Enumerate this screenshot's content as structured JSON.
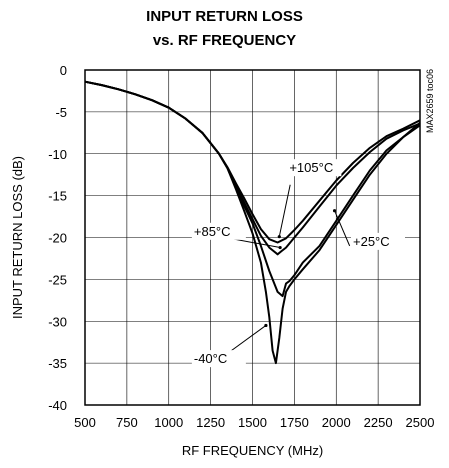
{
  "chart_data": {
    "type": "line",
    "title": [
      "INPUT RETURN LOSS",
      "vs. RF FREQUENCY"
    ],
    "xlabel": "RF FREQUENCY (MHz)",
    "ylabel": "INPUT RETURN LOSS (dB)",
    "xlim": [
      500,
      2500
    ],
    "ylim": [
      -40,
      0
    ],
    "xticks": [
      500,
      750,
      1000,
      1250,
      1500,
      1750,
      2000,
      2250,
      2500
    ],
    "yticks": [
      0,
      -5,
      -10,
      -15,
      -20,
      -25,
      -30,
      -35,
      -40
    ],
    "grid": true,
    "watermark": "MAX2659 toc06",
    "series": [
      {
        "name": "-40°C",
        "x": [
          500,
          600,
          700,
          800,
          900,
          1000,
          1100,
          1200,
          1300,
          1350,
          1400,
          1450,
          1500,
          1550,
          1580,
          1600,
          1620,
          1640,
          1660,
          1680,
          1700,
          1720,
          1750,
          1800,
          1900,
          2000,
          2100,
          2200,
          2300,
          2400,
          2500
        ],
        "y": [
          -1.4,
          -1.8,
          -2.3,
          -2.9,
          -3.6,
          -4.5,
          -5.8,
          -7.5,
          -10.0,
          -11.7,
          -14.2,
          -16.8,
          -19.5,
          -23.0,
          -26.5,
          -29.5,
          -33.5,
          -35.0,
          -32.0,
          -28.5,
          -26.5,
          -25.8,
          -25.0,
          -23.8,
          -21.5,
          -18.5,
          -15.5,
          -12.5,
          -10.0,
          -8.0,
          -6.3
        ]
      },
      {
        "name": "+25°C",
        "x": [
          500,
          600,
          700,
          800,
          900,
          1000,
          1100,
          1200,
          1300,
          1350,
          1400,
          1450,
          1500,
          1550,
          1600,
          1650,
          1680,
          1700,
          1720,
          1750,
          1800,
          1900,
          2000,
          2100,
          2200,
          2300,
          2400,
          2500
        ],
        "y": [
          -1.4,
          -1.8,
          -2.3,
          -2.9,
          -3.6,
          -4.5,
          -5.8,
          -7.5,
          -10.0,
          -11.7,
          -14.0,
          -16.2,
          -18.3,
          -21.0,
          -24.0,
          -26.5,
          -27.0,
          -25.5,
          -25.2,
          -24.5,
          -23.0,
          -21.0,
          -18.0,
          -15.0,
          -12.0,
          -9.6,
          -8.0,
          -6.6
        ]
      },
      {
        "name": "+85°C",
        "x": [
          500,
          600,
          700,
          800,
          900,
          1000,
          1100,
          1200,
          1300,
          1350,
          1400,
          1450,
          1500,
          1550,
          1600,
          1650,
          1675,
          1700,
          1750,
          1800,
          1900,
          2000,
          2100,
          2200,
          2300,
          2400,
          2500
        ],
        "y": [
          -1.4,
          -1.8,
          -2.3,
          -2.9,
          -3.6,
          -4.5,
          -5.8,
          -7.5,
          -10.0,
          -11.7,
          -13.8,
          -15.8,
          -17.8,
          -19.8,
          -21.2,
          -22.0,
          -21.6,
          -21.2,
          -20.0,
          -18.8,
          -16.3,
          -13.8,
          -11.7,
          -9.8,
          -8.2,
          -7.2,
          -6.4
        ]
      },
      {
        "name": "+105°C",
        "x": [
          500,
          600,
          700,
          800,
          900,
          1000,
          1100,
          1200,
          1300,
          1350,
          1400,
          1450,
          1500,
          1550,
          1600,
          1650,
          1700,
          1750,
          1800,
          1900,
          2000,
          2100,
          2200,
          2300,
          2400,
          2500
        ],
        "y": [
          -1.4,
          -1.8,
          -2.3,
          -2.9,
          -3.6,
          -4.5,
          -5.8,
          -7.5,
          -10.0,
          -11.6,
          -13.5,
          -15.3,
          -17.2,
          -19.0,
          -20.2,
          -20.6,
          -20.1,
          -19.1,
          -18.0,
          -15.6,
          -13.2,
          -11.1,
          -9.3,
          -7.9,
          -7.0,
          -6.0
        ]
      }
    ],
    "annotations": [
      {
        "text": "+105°C",
        "x": 1720,
        "y": -12.2
      },
      {
        "text": "+85°C",
        "x": 1150,
        "y": -19.8
      },
      {
        "text": "+25°C",
        "x": 2100,
        "y": -21.0
      },
      {
        "text": "-40°C",
        "x": 1150,
        "y": -35.0
      }
    ]
  }
}
